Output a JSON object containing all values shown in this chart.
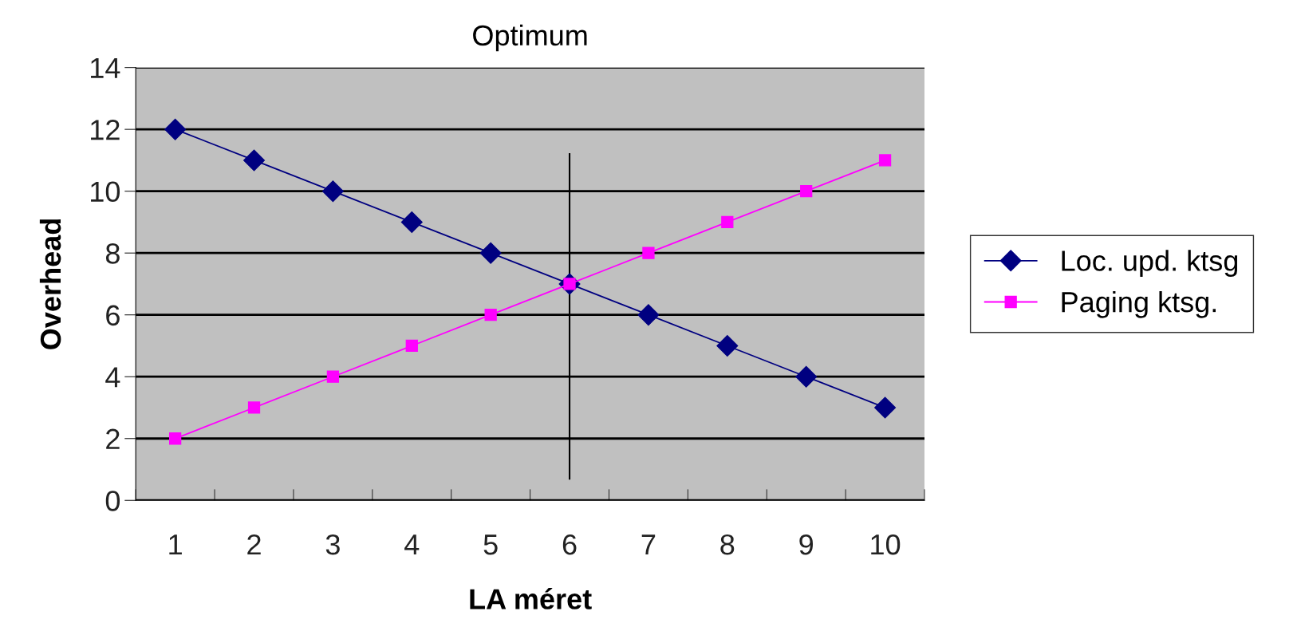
{
  "chart_data": {
    "type": "line",
    "title": "Optimum",
    "xlabel": "LA méret",
    "ylabel": "Overhead",
    "categories": [
      "1",
      "2",
      "3",
      "4",
      "5",
      "6",
      "7",
      "8",
      "9",
      "10"
    ],
    "series": [
      {
        "name": "Loc. upd. ktsg",
        "color": "#000080",
        "marker": "diamond",
        "values": [
          12,
          11,
          10,
          9,
          8,
          7,
          6,
          5,
          4,
          3
        ]
      },
      {
        "name": "Paging ktsg.",
        "color": "#ff00ff",
        "marker": "square",
        "values": [
          2,
          3,
          4,
          5,
          6,
          7,
          8,
          9,
          10,
          11
        ]
      }
    ],
    "ylim": [
      0,
      14
    ],
    "yticks": [
      0,
      2,
      4,
      6,
      8,
      10,
      12,
      14
    ],
    "grid": "y",
    "legend": "right",
    "line_style": "solid",
    "ref_lines": [
      {
        "axis": "x",
        "value": "6",
        "color": "#000000"
      }
    ]
  }
}
